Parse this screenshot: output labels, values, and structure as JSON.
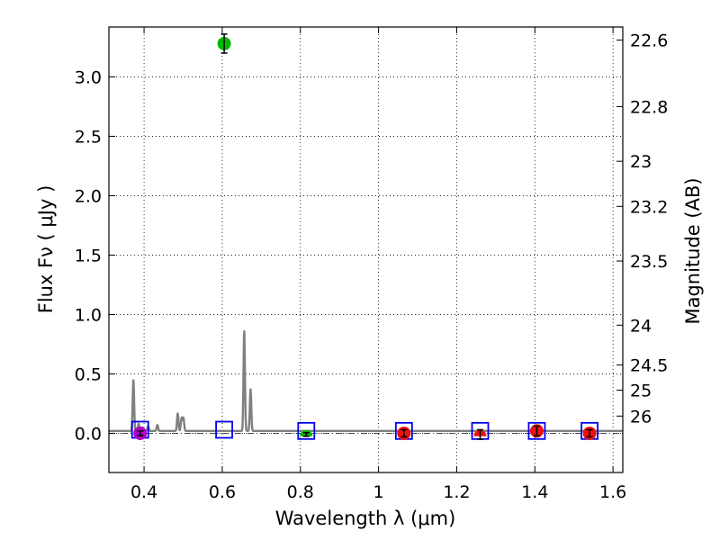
{
  "chart_data": {
    "type": "scatter",
    "xlabel": "Wavelength  λ (μm)",
    "ylabel": "Flux  Fν  ( μJy )",
    "ylabel_right": "Magnitude (AB)",
    "xlim": [
      0.31,
      1.625
    ],
    "ylim": [
      -0.33,
      3.42
    ],
    "x_ticks": [
      {
        "value": 0.4,
        "label": "0.4"
      },
      {
        "value": 0.6,
        "label": "0.6"
      },
      {
        "value": 0.8,
        "label": "0.8"
      },
      {
        "value": 1.0,
        "label": "1"
      },
      {
        "value": 1.2,
        "label": "1.2"
      },
      {
        "value": 1.4,
        "label": "1.4"
      },
      {
        "value": 1.6,
        "label": "1.6"
      }
    ],
    "y_ticks": [
      {
        "value": 0.0,
        "label": "0.0"
      },
      {
        "value": 0.5,
        "label": "0.5"
      },
      {
        "value": 1.0,
        "label": "1.0"
      },
      {
        "value": 1.5,
        "label": "1.5"
      },
      {
        "value": 2.0,
        "label": "2.0"
      },
      {
        "value": 2.5,
        "label": "2.5"
      },
      {
        "value": 3.0,
        "label": "3.0"
      }
    ],
    "mag_ticks": [
      {
        "label": "22.6",
        "flux": 3.31
      },
      {
        "label": "22.8",
        "flux": 2.75
      },
      {
        "label": "23",
        "flux": 2.29
      },
      {
        "label": "23.2",
        "flux": 1.91
      },
      {
        "label": "23.5",
        "flux": 1.45
      },
      {
        "label": "24",
        "flux": 0.91
      },
      {
        "label": "24.5",
        "flux": 0.575
      },
      {
        "label": "25",
        "flux": 0.363
      },
      {
        "label": "26",
        "flux": 0.145
      }
    ],
    "observed_points": [
      {
        "x": 0.39,
        "y": 0.0,
        "err": 0.02,
        "color": "#b000c8",
        "marker": "circle"
      },
      {
        "x": 0.605,
        "y": 3.28,
        "err": 0.08,
        "color": "#00bb00",
        "marker": "circle"
      },
      {
        "x": 0.815,
        "y": -0.01,
        "err": 0.015,
        "color": "#00bb00",
        "marker": "semicircle"
      },
      {
        "x": 1.065,
        "y": 0.0,
        "err": 0.03,
        "color": "#ee1111",
        "marker": "circle"
      },
      {
        "x": 1.26,
        "y": -0.01,
        "err": 0.04,
        "color": "#ee1111",
        "marker": "semicircle"
      },
      {
        "x": 1.405,
        "y": 0.02,
        "err": 0.04,
        "color": "#ee1111",
        "marker": "circle"
      },
      {
        "x": 1.54,
        "y": 0.0,
        "err": 0.03,
        "color": "#ee1111",
        "marker": "circle"
      }
    ],
    "model_points": [
      {
        "x": 0.39,
        "y": 0.03
      },
      {
        "x": 0.605,
        "y": 0.03
      },
      {
        "x": 0.815,
        "y": 0.02
      },
      {
        "x": 1.065,
        "y": 0.02
      },
      {
        "x": 1.26,
        "y": 0.02
      },
      {
        "x": 1.405,
        "y": 0.02
      },
      {
        "x": 1.54,
        "y": 0.02
      }
    ],
    "model_spectrum": {
      "color": "#808080",
      "baseline": 0.02,
      "x_start": 0.31,
      "x_end": 1.625,
      "emission_lines": [
        {
          "x": 0.3727,
          "peak": 0.45
        },
        {
          "x": 0.386,
          "peak": 0.08
        },
        {
          "x": 0.395,
          "peak": 0.05
        },
        {
          "x": 0.4102,
          "peak": 0.06
        },
        {
          "x": 0.4341,
          "peak": 0.07
        },
        {
          "x": 0.4861,
          "peak": 0.17
        },
        {
          "x": 0.4959,
          "peak": 0.13
        },
        {
          "x": 0.5007,
          "peak": 0.13
        },
        {
          "x": 0.6563,
          "peak": 0.87
        },
        {
          "x": 0.6725,
          "peak": 0.37
        }
      ]
    },
    "zero_line": {
      "y": 0,
      "style": "dash-dot"
    },
    "grid": true,
    "colors": {
      "model_box": "#0000ee",
      "error_bar": "#000000",
      "grid": "#000000"
    }
  }
}
